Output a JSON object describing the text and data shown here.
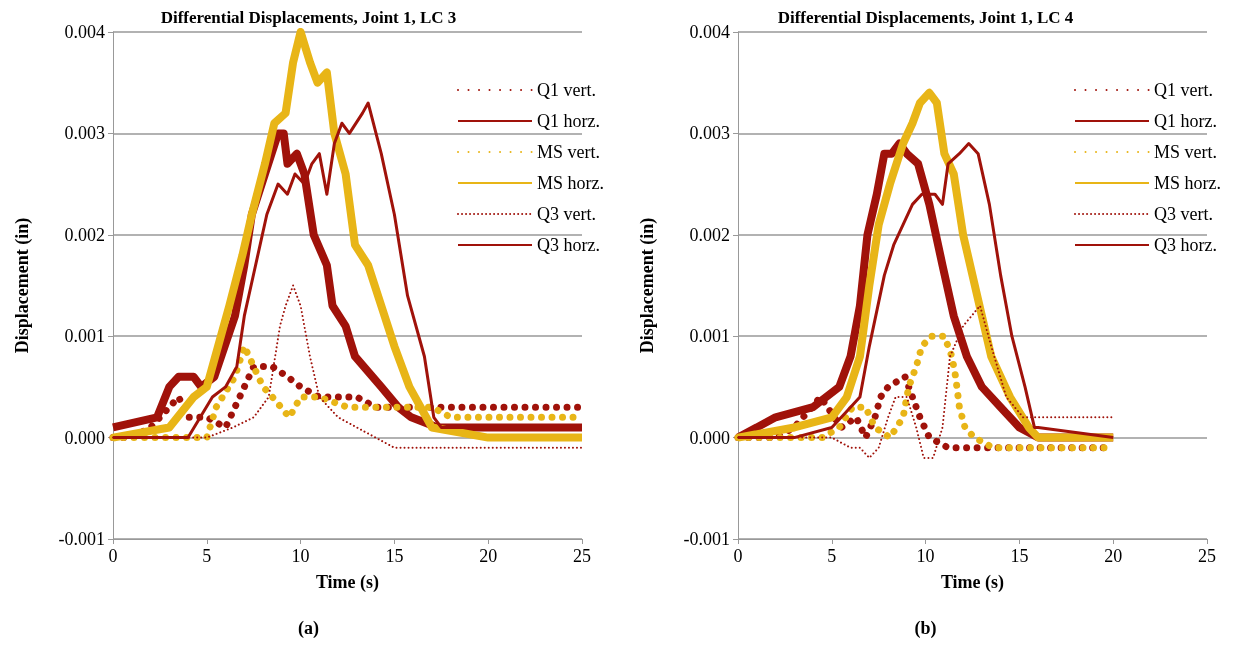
{
  "chart_data": [
    {
      "type": "line",
      "title": "Differential Displacements, Joint 1, LC 3",
      "xlabel": "Time (s)",
      "ylabel": "Displacement (in)",
      "annotations": [
        "(a)"
      ],
      "xlim": [
        0,
        25
      ],
      "xticks": [
        0,
        5,
        10,
        15,
        20,
        25
      ],
      "ylim": [
        -0.001,
        0.004
      ],
      "yticks": [
        {
          "value": -0.001,
          "label": "-0.001"
        },
        {
          "value": 0,
          "label": "0.000"
        },
        {
          "value": 0.001,
          "label": "0.001"
        },
        {
          "value": 0.002,
          "label": "0.002"
        },
        {
          "value": 0.003,
          "label": "0.003"
        },
        {
          "value": 0.004,
          "label": "0.004"
        }
      ],
      "grid": "y",
      "legend": "top right",
      "marker": "none",
      "series": [
        {
          "name": "Q1 vert.",
          "color": "#a0120a",
          "line_style": "dotted",
          "x": [
            0,
            1,
            2,
            3,
            3.5,
            4,
            5,
            6,
            6.5,
            7,
            7.5,
            8.5,
            9.3,
            10,
            11,
            12,
            13,
            14,
            15,
            16,
            17,
            18,
            20,
            22,
            25
          ],
          "values": [
            0,
            0,
            0.0001,
            0.0003,
            0.0004,
            0.0002,
            0.0002,
            0.0001,
            0.0003,
            0.0005,
            0.0007,
            0.0007,
            0.0006,
            0.0005,
            0.0004,
            0.0004,
            0.0004,
            0.0003,
            0.0003,
            0.0003,
            0.0003,
            0.0003,
            0.0003,
            0.0003,
            0.0003
          ]
        },
        {
          "name": "Q1 horz.",
          "color": "#a0120a",
          "line_style": "solid",
          "x": [
            0,
            2.35,
            3,
            3.5,
            4.3,
            4.7,
            5.4,
            6.5,
            7,
            7.4,
            8.1,
            8.8,
            9.1,
            9.3,
            9.8,
            10.2,
            10.7,
            11.4,
            11.7,
            12.4,
            12.9,
            14.3,
            15.2,
            15.9,
            17.3,
            20,
            25
          ],
          "values": [
            0.0001,
            0.0002,
            0.0005,
            0.0006,
            0.0006,
            0.0005,
            0.0006,
            0.0012,
            0.0017,
            0.0022,
            0.0026,
            0.003,
            0.003,
            0.0027,
            0.0028,
            0.0026,
            0.002,
            0.0017,
            0.0013,
            0.0011,
            0.0008,
            0.0005,
            0.0003,
            0.0002,
            0.0001,
            0.0001,
            0.0001
          ]
        },
        {
          "name": "MS vert.",
          "color": "#e8b517",
          "line_style": "dotted",
          "x": [
            0,
            2,
            3,
            4,
            5,
            5.5,
            6.5,
            7,
            7.5,
            8,
            8.5,
            9.4,
            10,
            11,
            12.5,
            14,
            15,
            17,
            18,
            20,
            22,
            25
          ],
          "values": [
            0,
            0,
            0,
            0,
            0,
            0.0003,
            0.0006,
            0.0009,
            0.0007,
            0.0005,
            0.0004,
            0.0002,
            0.0004,
            0.0004,
            0.0003,
            0.0003,
            0.0003,
            0.0003,
            0.0002,
            0.0002,
            0.0002,
            0.0002
          ]
        },
        {
          "name": "MS horz.",
          "color": "#e8b517",
          "line_style": "solid",
          "x": [
            0,
            3,
            4.3,
            5,
            5.6,
            6.2,
            6.9,
            7.4,
            8.1,
            8.6,
            9.2,
            9.6,
            10,
            10.5,
            10.9,
            11.4,
            11.8,
            12.4,
            12.9,
            13.6,
            14.3,
            15,
            15.8,
            17,
            20,
            25
          ],
          "values": [
            0,
            0.0001,
            0.0004,
            0.0005,
            0.0009,
            0.0013,
            0.0018,
            0.0022,
            0.0027,
            0.0031,
            0.0032,
            0.0037,
            0.004,
            0.0037,
            0.0035,
            0.0036,
            0.003,
            0.0026,
            0.0019,
            0.0017,
            0.0013,
            0.0009,
            0.0005,
            0.0001,
            0,
            0
          ]
        },
        {
          "name": "Q3 vert.",
          "color": "#a0120a",
          "line_style": "dotted",
          "x": [
            0,
            5,
            6.4,
            7.5,
            8.3,
            8.9,
            9.2,
            9.6,
            10,
            10.5,
            11,
            12,
            13,
            14,
            15,
            17,
            25
          ],
          "values": [
            0,
            0,
            0.0001,
            0.0002,
            0.0004,
            0.0011,
            0.0013,
            0.0015,
            0.0013,
            0.0008,
            0.0004,
            0.0002,
            0.0001,
            0,
            -0.0001,
            -0.0001,
            -0.0001
          ]
        },
        {
          "name": "Q3 horz.",
          "color": "#a0120a",
          "line_style": "solid",
          "x": [
            0,
            4,
            5.3,
            6,
            6.6,
            7,
            7.6,
            8.2,
            8.8,
            9.3,
            9.7,
            10.2,
            10.6,
            11,
            11.4,
            11.8,
            12.2,
            12.6,
            13.3,
            13.6,
            14.3,
            15,
            15.7,
            16.6,
            17.1,
            17.5,
            25
          ],
          "values": [
            0,
            0,
            0.0004,
            0.0005,
            0.0007,
            0.0012,
            0.0017,
            0.0022,
            0.0025,
            0.0024,
            0.0026,
            0.0025,
            0.0027,
            0.0028,
            0.0024,
            0.0029,
            0.0031,
            0.003,
            0.0032,
            0.0033,
            0.0028,
            0.0022,
            0.0014,
            0.0008,
            0.0002,
            0.0001,
            0.0001
          ]
        }
      ]
    },
    {
      "type": "line",
      "title": "Differential Displacements, Joint 1, LC 4",
      "xlabel": "Time (s)",
      "ylabel": "Displacement (in)",
      "annotations": [
        "(b)"
      ],
      "xlim": [
        0,
        25
      ],
      "xticks": [
        0,
        5,
        10,
        15,
        20,
        25
      ],
      "ylim": [
        -0.001,
        0.004
      ],
      "yticks": [
        {
          "value": -0.001,
          "label": "-0.001"
        },
        {
          "value": 0,
          "label": "0.000"
        },
        {
          "value": 0.001,
          "label": "0.001"
        },
        {
          "value": 0.002,
          "label": "0.002"
        },
        {
          "value": 0.003,
          "label": "0.003"
        },
        {
          "value": 0.004,
          "label": "0.004"
        }
      ],
      "grid": "y",
      "legend": "top right",
      "marker": "none",
      "series": [
        {
          "name": "Q1 vert.",
          "color": "#a0120a",
          "line_style": "dotted",
          "x": [
            0,
            1,
            2,
            3,
            4.4,
            5.5,
            6.3,
            6.8,
            7.3,
            7.6,
            8,
            8.9,
            9.3,
            9.7,
            10.2,
            11.2,
            12.3,
            13.3,
            14,
            16,
            18,
            19.6
          ],
          "values": [
            0,
            0,
            0,
            0.0001,
            0.0004,
            0.0001,
            0.0002,
            0,
            0.0002,
            0.0004,
            0.0005,
            0.0006,
            0.0004,
            0.0002,
            0,
            -0.0001,
            -0.0001,
            -0.0001,
            -0.0001,
            -0.0001,
            -0.0001,
            -0.0001
          ]
        },
        {
          "name": "Q1 horz.",
          "color": "#a0120a",
          "line_style": "solid",
          "x": [
            0,
            2,
            4,
            5.4,
            6,
            6.5,
            6.9,
            7.4,
            7.8,
            8.2,
            8.6,
            9,
            9.6,
            10.2,
            10.9,
            11.5,
            12.2,
            13,
            14,
            15,
            16,
            20
          ],
          "values": [
            0,
            0.0002,
            0.0003,
            0.0005,
            0.0008,
            0.0013,
            0.002,
            0.0024,
            0.0028,
            0.0028,
            0.0029,
            0.0028,
            0.0027,
            0.0023,
            0.0017,
            0.0012,
            0.0008,
            0.0005,
            0.0003,
            0.0001,
            0,
            0
          ]
        },
        {
          "name": "MS vert.",
          "color": "#e8b517",
          "line_style": "dotted",
          "x": [
            0,
            2,
            4.5,
            5.4,
            6.1,
            6.8,
            7.3,
            8.1,
            8.8,
            9.1,
            9.5,
            9.8,
            10.3,
            11,
            11.4,
            11.6,
            11.8,
            12.1,
            12.6,
            13.6,
            14,
            16,
            18,
            20
          ],
          "values": [
            0,
            0,
            0,
            0.0001,
            0.0003,
            0.0003,
            0.0001,
            0,
            0.0002,
            0.0005,
            0.0007,
            0.0009,
            0.001,
            0.001,
            0.0008,
            0.0006,
            0.0003,
            0.0001,
            0,
            -0.0001,
            -0.0001,
            -0.0001,
            -0.0001,
            -0.0001
          ]
        },
        {
          "name": "MS horz.",
          "color": "#e8b517",
          "line_style": "solid",
          "x": [
            0,
            3,
            5,
            5.8,
            6.5,
            7,
            7.5,
            8.1,
            8.8,
            9.3,
            9.7,
            10.2,
            10.6,
            11,
            11.5,
            12,
            12.5,
            13.5,
            14.5,
            15.5,
            16,
            20
          ],
          "values": [
            0,
            0.0001,
            0.0002,
            0.0004,
            0.0008,
            0.0015,
            0.0021,
            0.0025,
            0.0029,
            0.0031,
            0.0033,
            0.0034,
            0.0033,
            0.0028,
            0.0026,
            0.002,
            0.0016,
            0.0008,
            0.0004,
            0.0001,
            0,
            0
          ]
        },
        {
          "name": "Q3 vert.",
          "color": "#a0120a",
          "line_style": "dotted",
          "x": [
            0,
            5,
            6,
            6.5,
            7,
            7.5,
            8,
            8.4,
            9,
            9.5,
            9.9,
            10.4,
            10.9,
            11.3,
            12,
            12.9,
            13.5,
            14.3,
            15.2,
            16,
            20
          ],
          "values": [
            0,
            0,
            -0.0001,
            -0.0001,
            -0.0002,
            -0.0001,
            0.0002,
            0.0004,
            0.0004,
            0.0001,
            -0.0002,
            -0.0002,
            0.0001,
            0.0008,
            0.0011,
            0.0013,
            0.0009,
            0.0004,
            0.0002,
            0.0002,
            0.0002
          ]
        },
        {
          "name": "Q3 horz.",
          "color": "#a0120a",
          "line_style": "solid",
          "x": [
            0,
            3,
            5,
            6,
            6.5,
            7,
            7.8,
            8.3,
            8.8,
            9.3,
            9.8,
            10.5,
            10.9,
            11.2,
            11.8,
            12.3,
            12.8,
            13.4,
            14,
            14.6,
            15.3,
            15.8,
            16,
            20
          ],
          "values": [
            0,
            0,
            0.0001,
            0.0003,
            0.0004,
            0.0009,
            0.0016,
            0.0019,
            0.0021,
            0.0023,
            0.0024,
            0.0024,
            0.0023,
            0.0027,
            0.0028,
            0.0029,
            0.0028,
            0.0023,
            0.0016,
            0.001,
            0.0005,
            0.0001,
            0.0001,
            0
          ]
        }
      ]
    }
  ]
}
